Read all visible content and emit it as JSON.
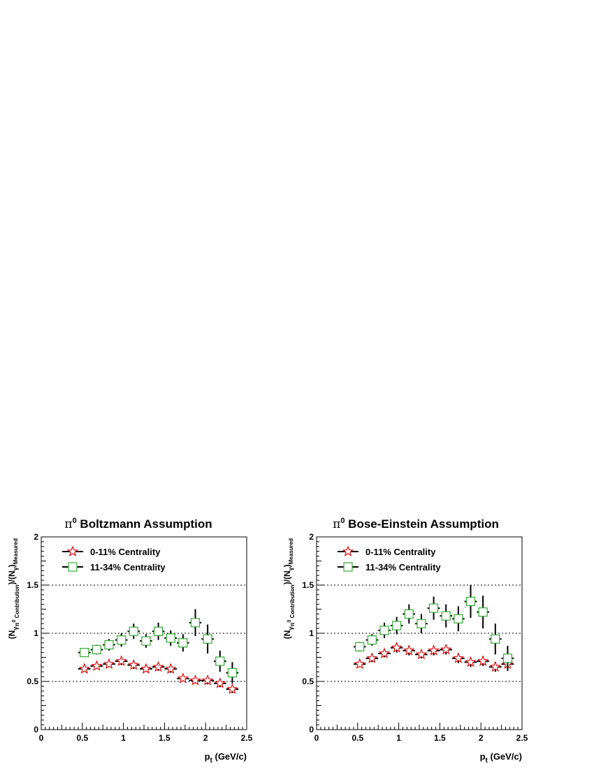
{
  "chart_data": [
    {
      "type": "scatter",
      "title_symbol": "π",
      "title_sup": "0",
      "title_rest": " Boltzmann Assumption",
      "xlabel_main": "p",
      "xlabel_sub": "t",
      "xlabel_rest": " (GeV/c)",
      "ylabel_parts": [
        "(N",
        "γ",
        "π",
        "0",
        " Contribution",
        ")/(N",
        "γ",
        ")",
        "Measured"
      ],
      "xlim": [
        0,
        2.5
      ],
      "ylim": [
        0,
        2
      ],
      "xticks": [
        "0",
        "0.5",
        "1",
        "1.5",
        "2",
        "2.5"
      ],
      "yticks": [
        "0",
        "0.5",
        "1",
        "1.5",
        "2"
      ],
      "gridlines_y": [
        0.5,
        1.0,
        1.5
      ],
      "legend_position": "top-left",
      "series": [
        {
          "name": "0-11% Centrality",
          "marker": "star",
          "color": "#dd1111",
          "x": [
            0.525,
            0.675,
            0.825,
            0.975,
            1.125,
            1.275,
            1.425,
            1.575,
            1.725,
            1.875,
            2.025,
            2.175,
            2.325
          ],
          "y": [
            0.63,
            0.66,
            0.68,
            0.71,
            0.67,
            0.63,
            0.65,
            0.63,
            0.53,
            0.51,
            0.51,
            0.48,
            0.42
          ],
          "yerr": [
            0.03,
            0.03,
            0.03,
            0.04,
            0.04,
            0.03,
            0.04,
            0.04,
            0.03,
            0.03,
            0.04,
            0.04,
            0.04
          ]
        },
        {
          "name": "11-34% Centrality",
          "marker": "square",
          "color": "#33aa33",
          "x": [
            0.525,
            0.675,
            0.825,
            0.975,
            1.125,
            1.275,
            1.425,
            1.575,
            1.725,
            1.875,
            2.025,
            2.175,
            2.325
          ],
          "y": [
            0.8,
            0.83,
            0.88,
            0.93,
            1.02,
            0.92,
            1.02,
            0.95,
            0.9,
            1.11,
            0.94,
            0.71,
            0.59
          ],
          "yerr": [
            0.04,
            0.05,
            0.06,
            0.07,
            0.08,
            0.07,
            0.09,
            0.08,
            0.09,
            0.14,
            0.15,
            0.11,
            0.11
          ]
        }
      ]
    },
    {
      "type": "scatter",
      "title_symbol": "π",
      "title_sup": "0",
      "title_rest": " Bose-Einstein Assumption",
      "xlabel_main": "p",
      "xlabel_sub": "t",
      "xlabel_rest": " (GeV/c)",
      "ylabel_parts": [
        "(N",
        "γ",
        "π",
        "0",
        " Contribution",
        ")/(N",
        "γ",
        ")",
        "Measured"
      ],
      "xlim": [
        0,
        2.5
      ],
      "ylim": [
        0,
        2
      ],
      "xticks": [
        "0",
        "0.5",
        "1",
        "1.5",
        "2",
        "2.5"
      ],
      "yticks": [
        "0",
        "0.5",
        "1",
        "1.5",
        "2"
      ],
      "gridlines_y": [
        0.5,
        1.0,
        1.5
      ],
      "legend_position": "top-left",
      "series": [
        {
          "name": "0-11% Centrality",
          "marker": "star",
          "color": "#dd1111",
          "x": [
            0.525,
            0.675,
            0.825,
            0.975,
            1.125,
            1.275,
            1.425,
            1.575,
            1.725,
            1.875,
            2.025,
            2.175,
            2.325
          ],
          "y": [
            0.68,
            0.74,
            0.79,
            0.85,
            0.82,
            0.78,
            0.82,
            0.83,
            0.74,
            0.7,
            0.71,
            0.65,
            0.68
          ],
          "yerr": [
            0.03,
            0.04,
            0.04,
            0.05,
            0.05,
            0.04,
            0.05,
            0.05,
            0.05,
            0.05,
            0.05,
            0.05,
            0.06
          ]
        },
        {
          "name": "11-34% Centrality",
          "marker": "square",
          "color": "#33aa33",
          "x": [
            0.525,
            0.675,
            0.825,
            0.975,
            1.125,
            1.275,
            1.425,
            1.575,
            1.725,
            1.875,
            2.025,
            2.175,
            2.325
          ],
          "y": [
            0.86,
            0.93,
            1.03,
            1.08,
            1.2,
            1.1,
            1.26,
            1.18,
            1.15,
            1.33,
            1.22,
            0.94,
            0.74
          ],
          "yerr": [
            0.05,
            0.06,
            0.08,
            0.09,
            0.1,
            0.1,
            0.12,
            0.12,
            0.13,
            0.17,
            0.17,
            0.16,
            0.13
          ]
        }
      ]
    }
  ]
}
